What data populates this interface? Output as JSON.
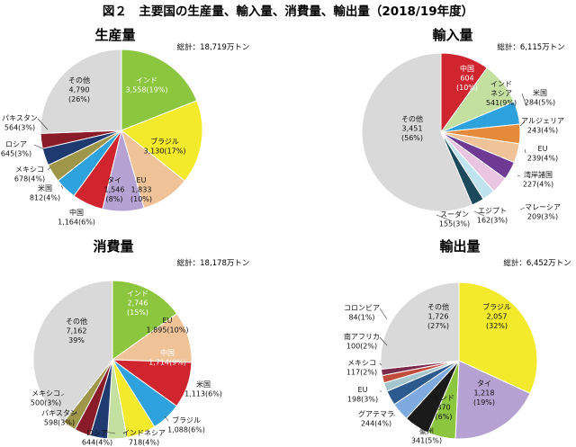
{
  "figure": {
    "title": "図２　主要国の生産量、輸入量、消費量、輸出量（2018/19年度）"
  },
  "chart_data": [
    {
      "type": "pie",
      "title": "生産量",
      "total_label": "総計：18,719万トン",
      "slices": [
        {
          "name": "インド",
          "value": 3558,
          "pct": 19,
          "label": "インド\n3,558(19%)",
          "color": "#8cc63e",
          "text_color": "#ffffff"
        },
        {
          "name": "ブラジル",
          "value": 3130,
          "pct": 17,
          "label": "ブラジル\n3,130(17%)",
          "color": "#f2ea2a",
          "text_color": "#111111"
        },
        {
          "name": "EU",
          "value": 1833,
          "pct": 10,
          "label": "EU\n1,833\n(10%)",
          "color": "#f0c298",
          "text_color": "#111111"
        },
        {
          "name": "タイ",
          "value": 1546,
          "pct": 8,
          "label": "タイ\n1,546\n(8%)",
          "color": "#b6a2d2",
          "text_color": "#111111"
        },
        {
          "name": "中国",
          "value": 1164,
          "pct": 6,
          "label": "中国\n1,164(6%)",
          "color": "#d0242e",
          "text_color": "#111111"
        },
        {
          "name": "米国",
          "value": 812,
          "pct": 4,
          "label": "米国\n812(4%)",
          "color": "#2ea2dd",
          "text_color": "#111111"
        },
        {
          "name": "メキシコ",
          "value": 678,
          "pct": 4,
          "label": "メキシコ\n678(4%)",
          "color": "#9e9648",
          "text_color": "#111111"
        },
        {
          "name": "ロシア",
          "value": 645,
          "pct": 3,
          "label": "ロシア\n645(3%)",
          "color": "#1f3a6e",
          "text_color": "#111111"
        },
        {
          "name": "パキスタン",
          "value": 564,
          "pct": 3,
          "label": "パキスタン\n564(3%)",
          "color": "#8a1c2a",
          "text_color": "#111111"
        },
        {
          "name": "その他",
          "value": 4790,
          "pct": 26,
          "label": "その他\n4,790\n(26%)",
          "color": "#d9d9d9",
          "text_color": "#111111"
        }
      ]
    },
    {
      "type": "pie",
      "title": "輸入量",
      "total_label": "総計：6,115万トン",
      "slices": [
        {
          "name": "中国",
          "value": 604,
          "pct": 10,
          "label": "中国\n604\n(10%)",
          "color": "#d0242e",
          "text_color": "#ffffff"
        },
        {
          "name": "インドネシア",
          "value": 541,
          "pct": 9,
          "label": "インド\nネシア\n541(9%)",
          "color": "#c3e0a0",
          "text_color": "#111111"
        },
        {
          "name": "米国",
          "value": 284,
          "pct": 5,
          "label": "米国\n284(5%)",
          "color": "#2ea2dd",
          "text_color": "#111111"
        },
        {
          "name": "アルジェリア",
          "value": 243,
          "pct": 4,
          "label": "アルジェリア\n243(4%)",
          "color": "#e58a3a",
          "text_color": "#111111"
        },
        {
          "name": "EU",
          "value": 239,
          "pct": 4,
          "label": "EU\n239(4%)",
          "color": "#f0c298",
          "text_color": "#111111"
        },
        {
          "name": "湾岸諸国",
          "value": 227,
          "pct": 4,
          "label": "湾岸諸国\n227(4%)",
          "color": "#6e3a94",
          "text_color": "#111111"
        },
        {
          "name": "マレーシア",
          "value": 209,
          "pct": 3,
          "label": "マレーシア\n209(3%)",
          "color": "#e9c5e2",
          "text_color": "#111111"
        },
        {
          "name": "エジプト",
          "value": 162,
          "pct": 3,
          "label": "エジプト\n162(3%)",
          "color": "#bfe3ef",
          "text_color": "#111111"
        },
        {
          "name": "スーダン",
          "value": 155,
          "pct": 3,
          "label": "スーダン\n155(3%)",
          "color": "#1c4a5c",
          "text_color": "#111111"
        },
        {
          "name": "その他",
          "value": 3451,
          "pct": 56,
          "label": "その他\n3,451\n(56%)",
          "color": "#d9d9d9",
          "text_color": "#111111"
        }
      ]
    },
    {
      "type": "pie",
      "title": "消費量",
      "total_label": "総計：18,178万トン",
      "slices": [
        {
          "name": "インド",
          "value": 2746,
          "pct": 15,
          "label": "インド\n2,746\n(15%)",
          "color": "#8cc63e",
          "text_color": "#ffffff"
        },
        {
          "name": "EU",
          "value": 1895,
          "pct": 10,
          "label": "EU\n1,895(10%)",
          "color": "#f0c298",
          "text_color": "#111111"
        },
        {
          "name": "中国",
          "value": 1714,
          "pct": 9,
          "label": "中国\n1,714(9%)",
          "color": "#d0242e",
          "text_color": "#ffffff"
        },
        {
          "name": "米国",
          "value": 1113,
          "pct": 6,
          "label": "米国\n1,113(6%)",
          "color": "#2ea2dd",
          "text_color": "#111111"
        },
        {
          "name": "ブラジル",
          "value": 1088,
          "pct": 6,
          "label": "ブラジル\n1,088(6%)",
          "color": "#f2ea2a",
          "text_color": "#111111"
        },
        {
          "name": "インドネシア",
          "value": 718,
          "pct": 4,
          "label": "インドネシア\n718(4%)",
          "color": "#c3e0a0",
          "text_color": "#111111"
        },
        {
          "name": "ロシア",
          "value": 644,
          "pct": 4,
          "label": "ロシア\n644(4%)",
          "color": "#1f3a6e",
          "text_color": "#111111"
        },
        {
          "name": "パキスタン",
          "value": 598,
          "pct": 3,
          "label": "パキスタン\n598(3%)",
          "color": "#8a1c2a",
          "text_color": "#111111"
        },
        {
          "name": "メキシコ",
          "value": 500,
          "pct": 3,
          "label": "メキシコ\n500(3%)",
          "color": "#9e9648",
          "text_color": "#111111"
        },
        {
          "name": "その他",
          "value": 7162,
          "pct": 39,
          "label": "その他\n7,162\n39%",
          "color": "#d9d9d9",
          "text_color": "#111111"
        }
      ]
    },
    {
      "type": "pie",
      "title": "輸出量",
      "total_label": "総計：6,452万トン",
      "slices": [
        {
          "name": "ブラジル",
          "value": 2057,
          "pct": 32,
          "label": "ブラジル\n2,057\n(32%)",
          "color": "#f2ea2a",
          "text_color": "#111111"
        },
        {
          "name": "タイ",
          "value": 1218,
          "pct": 19,
          "label": "タイ\n1,218\n(19%)",
          "color": "#b6a2d2",
          "text_color": "#111111"
        },
        {
          "name": "インド",
          "value": 370,
          "pct": 6,
          "label": "インド\n370\n(6%)",
          "color": "#8cc63e",
          "text_color": "#111111"
        },
        {
          "name": "豪州",
          "value": 341,
          "pct": 5,
          "label": "豪州\n341(5%)",
          "color": "#1a1a1a",
          "text_color": "#111111"
        },
        {
          "name": "グアテマラ",
          "value": 244,
          "pct": 4,
          "label": "グアテマラ\n244(4%)",
          "color": "#7faadf",
          "text_color": "#111111"
        },
        {
          "name": "EU",
          "value": 198,
          "pct": 3,
          "label": "EU\n198(3%)",
          "color": "#2d5a8e",
          "text_color": "#111111"
        },
        {
          "name": "メキシコ",
          "value": 117,
          "pct": 2,
          "label": "メキシコ\n117(2%)",
          "color": "#a4c6cc",
          "text_color": "#111111"
        },
        {
          "name": "南アフリカ",
          "value": 100,
          "pct": 2,
          "label": "南アフリカ\n100(2%)",
          "color": "#c24c3c",
          "text_color": "#111111"
        },
        {
          "name": "コロンビア",
          "value": 84,
          "pct": 1,
          "label": "コロンビア\n84(1%)",
          "color": "#7a2a4a",
          "text_color": "#111111"
        },
        {
          "name": "その他",
          "value": 1726,
          "pct": 27,
          "label": "その他\n1,726\n(27%)",
          "color": "#d9d9d9",
          "text_color": "#111111"
        }
      ]
    }
  ]
}
